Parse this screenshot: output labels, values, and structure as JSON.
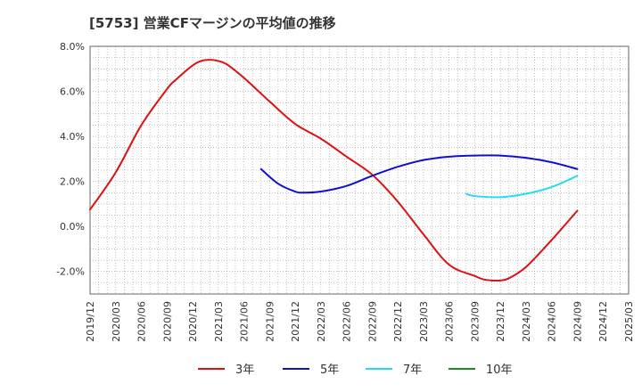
{
  "chart_data": {
    "type": "line",
    "title": "[5753]  営業CFマージンの平均値の推移",
    "xlabel": "",
    "ylabel": "",
    "y_ticks": [
      "8.0%",
      "6.0%",
      "4.0%",
      "2.0%",
      "0.0%",
      "-2.0%"
    ],
    "ylim": [
      -3.0,
      8.0
    ],
    "x_ticks": [
      "2019/12",
      "2020/03",
      "2020/06",
      "2020/09",
      "2020/12",
      "2021/03",
      "2021/06",
      "2021/09",
      "2021/12",
      "2022/03",
      "2022/06",
      "2022/09",
      "2022/12",
      "2023/03",
      "2023/06",
      "2023/09",
      "2023/12",
      "2024/03",
      "2024/06",
      "2024/09",
      "2024/12",
      "2025/03"
    ],
    "grid": true,
    "legend_position": "bottom",
    "series": [
      {
        "name": "3年",
        "color": "#dd1111",
        "x": [
          "2019/12",
          "2020/03",
          "2020/06",
          "2020/09",
          "2020/10",
          "2020/12",
          "2021/01",
          "2021/02",
          "2021/03",
          "2021/04",
          "2021/06",
          "2021/08",
          "2021/09",
          "2021/12",
          "2022/03",
          "2022/06",
          "2022/09",
          "2022/12",
          "2023/03",
          "2023/06",
          "2023/09",
          "2023/10",
          "2023/11",
          "2023/12",
          "2024/01",
          "2024/03",
          "2024/06",
          "2024/09"
        ],
        "values": [
          0.75,
          2.4,
          4.5,
          6.1,
          6.5,
          7.15,
          7.35,
          7.4,
          7.35,
          7.2,
          6.6,
          5.9,
          5.55,
          4.55,
          3.9,
          3.1,
          2.3,
          1.1,
          -0.35,
          -1.7,
          -2.2,
          -2.35,
          -2.4,
          -2.4,
          -2.3,
          -1.8,
          -0.6,
          0.7
        ]
      },
      {
        "name": "5年",
        "color": "#1111cc",
        "x": [
          "2021/08",
          "2021/10",
          "2021/12",
          "2022/01",
          "2022/03",
          "2022/06",
          "2022/09",
          "2022/12",
          "2023/03",
          "2023/06",
          "2023/09",
          "2023/12",
          "2024/03",
          "2024/06",
          "2024/09"
        ],
        "values": [
          2.55,
          1.9,
          1.55,
          1.5,
          1.55,
          1.8,
          2.25,
          2.65,
          2.95,
          3.1,
          3.15,
          3.15,
          3.05,
          2.85,
          2.55
        ]
      },
      {
        "name": "7年",
        "color": "#22ddee",
        "x": [
          "2023/08",
          "2023/09",
          "2023/12",
          "2024/03",
          "2024/06",
          "2024/09"
        ],
        "values": [
          1.45,
          1.35,
          1.3,
          1.45,
          1.75,
          2.25
        ]
      },
      {
        "name": "10年",
        "color": "#228822",
        "x": [],
        "values": []
      }
    ]
  }
}
